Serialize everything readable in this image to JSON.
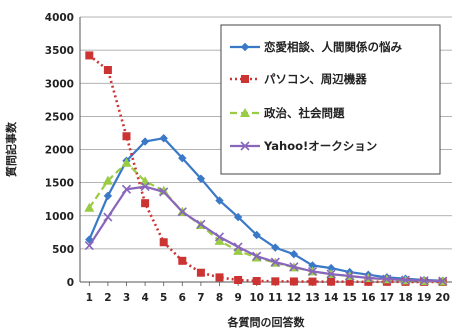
{
  "chart_data": {
    "type": "line",
    "title": "",
    "xlabel": "各質問の回答数",
    "ylabel": "質問記事数",
    "ylim": [
      0,
      4000
    ],
    "yticks": [
      0,
      500,
      1000,
      1500,
      2000,
      2500,
      3000,
      3500,
      4000
    ],
    "x": [
      1,
      2,
      3,
      4,
      5,
      6,
      7,
      8,
      9,
      10,
      11,
      12,
      13,
      14,
      15,
      16,
      17,
      18,
      19,
      20
    ],
    "grid": "horizontal",
    "legend_position": "top-right",
    "series": [
      {
        "name": "恋愛相談、人間関係の悩み",
        "color": "#3a78c8",
        "line": "solid",
        "marker": "diamond",
        "values": [
          640,
          1300,
          1830,
          2120,
          2170,
          1870,
          1560,
          1230,
          980,
          710,
          520,
          420,
          250,
          210,
          150,
          110,
          70,
          50,
          30,
          20
        ]
      },
      {
        "name": "パソコン、周辺機器",
        "color": "#cc3333",
        "line": "dotted",
        "marker": "square",
        "values": [
          3420,
          3200,
          2200,
          1190,
          600,
          320,
          140,
          70,
          30,
          15,
          10,
          8,
          6,
          5,
          4,
          3,
          3,
          2,
          2,
          1
        ]
      },
      {
        "name": "政治、社会問題",
        "color": "#99cc44",
        "line": "dashed",
        "marker": "triangle",
        "values": [
          1120,
          1530,
          1800,
          1520,
          1380,
          1060,
          860,
          620,
          470,
          370,
          290,
          220,
          160,
          120,
          90,
          60,
          40,
          25,
          15,
          10
        ]
      },
      {
        "name": "Yahoo!オークション",
        "color": "#8866bb",
        "line": "solid",
        "marker": "x",
        "values": [
          550,
          980,
          1400,
          1440,
          1360,
          1060,
          870,
          680,
          530,
          390,
          300,
          230,
          160,
          120,
          90,
          60,
          45,
          30,
          20,
          15
        ]
      }
    ]
  }
}
